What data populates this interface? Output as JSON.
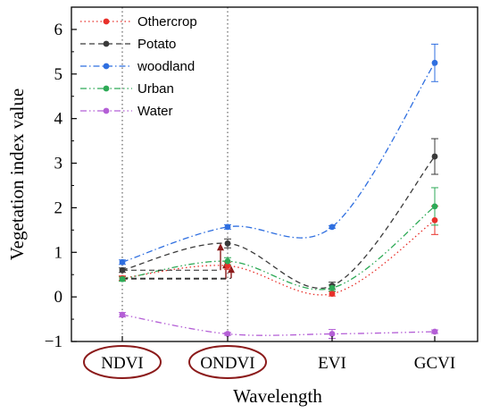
{
  "chart_data": {
    "type": "line",
    "title": "",
    "xlabel": "Wavelength",
    "ylabel": "Vegetation index value",
    "categories": [
      "NDVI",
      "ONDVI",
      "EVI",
      "GCVI"
    ],
    "circled_categories": [
      "NDVI",
      "ONDVI"
    ],
    "ylim": [
      -1,
      6.5
    ],
    "yticks": [
      -1,
      0,
      1,
      2,
      3,
      4,
      5,
      6
    ],
    "grid": false,
    "legend_position": "top-left",
    "series": [
      {
        "name": "Othercrop",
        "color": "#e8302a",
        "dash": "dotted",
        "values": [
          0.42,
          0.7,
          0.07,
          1.72
        ],
        "errors": [
          0.05,
          0.08,
          0.05,
          0.32
        ]
      },
      {
        "name": "Potato",
        "color": "#3a3a3a",
        "dash": "dashed",
        "values": [
          0.6,
          1.2,
          0.25,
          3.15
        ],
        "errors": [
          0.05,
          0.1,
          0.08,
          0.4
        ]
      },
      {
        "name": "woodland",
        "color": "#2f6fe0",
        "dash": "dashdot",
        "values": [
          0.78,
          1.57,
          1.57,
          5.25
        ],
        "errors": [
          0.05,
          0.05,
          0.03,
          0.42
        ]
      },
      {
        "name": "Urban",
        "color": "#2eaa57",
        "dash": "dashdotdot",
        "values": [
          0.4,
          0.8,
          0.2,
          2.03
        ],
        "errors": [
          0.05,
          0.08,
          0.07,
          0.42
        ]
      },
      {
        "name": "Water",
        "color": "#b45fd6",
        "dash": "dashdotdot",
        "values": [
          -0.4,
          -0.83,
          -0.83,
          -0.78
        ],
        "errors": [
          0.05,
          0.03,
          0.1,
          0.04
        ]
      }
    ],
    "arrows": {
      "color": "#8b1a1a",
      "from_category": "NDVI",
      "to_category": "ONDVI",
      "series_pairs": [
        {
          "series": "Potato",
          "from": 0.6,
          "to": 1.2
        },
        {
          "series": "Urban",
          "from": 0.4,
          "to": 0.8
        },
        {
          "series": "Othercrop",
          "from": 0.42,
          "to": 0.7
        }
      ]
    }
  }
}
